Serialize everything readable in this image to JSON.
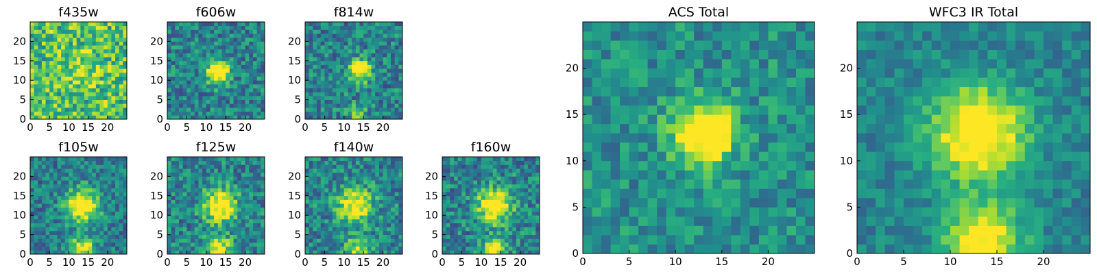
{
  "chart_data": [
    {
      "type": "heatmap",
      "title": "f435w",
      "xticks": [
        "0",
        "5",
        "10",
        "15",
        "20"
      ],
      "yticks": [
        "0",
        "5",
        "10",
        "15",
        "20"
      ],
      "xlim": [
        0,
        25
      ],
      "ylim": [
        0,
        25
      ],
      "note_values": "25x25 pixel cutout; per-pixel values not printed",
      "colormap": "viridis"
    },
    {
      "type": "heatmap",
      "title": "f606w",
      "xticks": [
        "0",
        "5",
        "10",
        "15",
        "20"
      ],
      "yticks": [
        "0",
        "5",
        "10",
        "15",
        "20"
      ],
      "xlim": [
        0,
        25
      ],
      "ylim": [
        0,
        25
      ],
      "colormap": "viridis"
    },
    {
      "type": "heatmap",
      "title": "f814w",
      "xticks": [
        "0",
        "5",
        "10",
        "15",
        "20"
      ],
      "yticks": [
        "0",
        "5",
        "10",
        "15",
        "20"
      ],
      "xlim": [
        0,
        25
      ],
      "ylim": [
        0,
        25
      ],
      "colormap": "viridis"
    },
    {
      "type": "heatmap",
      "title": "f105w",
      "xticks": [
        "0",
        "5",
        "10",
        "15",
        "20"
      ],
      "yticks": [
        "0",
        "5",
        "10",
        "15",
        "20"
      ],
      "xlim": [
        0,
        25
      ],
      "ylim": [
        0,
        25
      ],
      "colormap": "viridis"
    },
    {
      "type": "heatmap",
      "title": "f125w",
      "xticks": [
        "0",
        "5",
        "10",
        "15",
        "20"
      ],
      "yticks": [
        "0",
        "5",
        "10",
        "15",
        "20"
      ],
      "xlim": [
        0,
        25
      ],
      "ylim": [
        0,
        25
      ],
      "colormap": "viridis"
    },
    {
      "type": "heatmap",
      "title": "f140w",
      "xticks": [
        "0",
        "5",
        "10",
        "15",
        "20"
      ],
      "yticks": [
        "0",
        "5",
        "10",
        "15",
        "20"
      ],
      "xlim": [
        0,
        25
      ],
      "ylim": [
        0,
        25
      ],
      "colormap": "viridis"
    },
    {
      "type": "heatmap",
      "title": "f160w",
      "xticks": [
        "0",
        "5",
        "10",
        "15",
        "20"
      ],
      "yticks": [
        "0",
        "5",
        "10",
        "15",
        "20"
      ],
      "xlim": [
        0,
        25
      ],
      "ylim": [
        0,
        25
      ],
      "colormap": "viridis"
    },
    {
      "type": "heatmap",
      "title": "ACS Total",
      "xticks": [
        "0",
        "5",
        "10",
        "15",
        "20"
      ],
      "yticks": [
        "0",
        "5",
        "10",
        "15",
        "20"
      ],
      "xlim": [
        0,
        25
      ],
      "ylim": [
        0,
        25
      ],
      "colormap": "viridis"
    },
    {
      "type": "heatmap",
      "title": "WFC3 IR Total",
      "xticks": [
        "0",
        "5",
        "10",
        "15",
        "20"
      ],
      "yticks": [
        "0",
        "5",
        "10",
        "15",
        "20"
      ],
      "xlim": [
        0,
        25
      ],
      "ylim": [
        0,
        25
      ],
      "colormap": "viridis"
    }
  ]
}
